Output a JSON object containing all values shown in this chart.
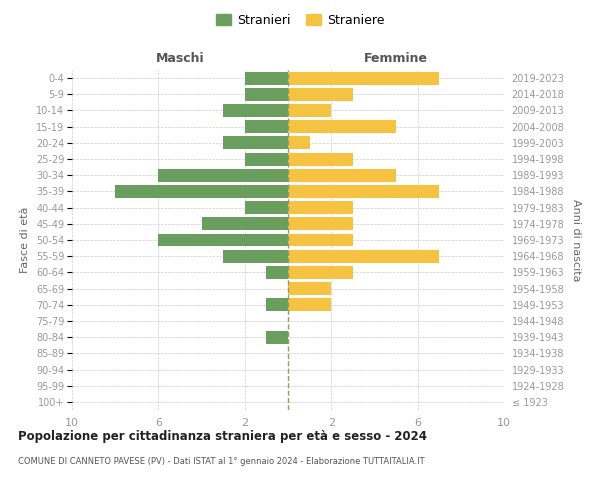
{
  "age_groups": [
    "100+",
    "95-99",
    "90-94",
    "85-89",
    "80-84",
    "75-79",
    "70-74",
    "65-69",
    "60-64",
    "55-59",
    "50-54",
    "45-49",
    "40-44",
    "35-39",
    "30-34",
    "25-29",
    "20-24",
    "15-19",
    "10-14",
    "5-9",
    "0-4"
  ],
  "birth_years": [
    "≤ 1923",
    "1924-1928",
    "1929-1933",
    "1934-1938",
    "1939-1943",
    "1944-1948",
    "1949-1953",
    "1954-1958",
    "1959-1963",
    "1964-1968",
    "1969-1973",
    "1974-1978",
    "1979-1983",
    "1984-1988",
    "1989-1993",
    "1994-1998",
    "1999-2003",
    "2004-2008",
    "2009-2013",
    "2014-2018",
    "2019-2023"
  ],
  "maschi": [
    0,
    0,
    0,
    0,
    1,
    0,
    1,
    0,
    1,
    3,
    6,
    4,
    2,
    8,
    6,
    2,
    3,
    2,
    3,
    2,
    2
  ],
  "femmine": [
    0,
    0,
    0,
    0,
    0,
    0,
    2,
    2,
    3,
    7,
    3,
    3,
    3,
    7,
    5,
    3,
    1,
    5,
    2,
    3,
    7
  ],
  "color_maschi": "#6a9e5f",
  "color_femmine": "#f5c242",
  "title": "Popolazione per cittadinanza straniera per età e sesso - 2024",
  "subtitle": "COMUNE DI CANNETO PAVESE (PV) - Dati ISTAT al 1° gennaio 2024 - Elaborazione TUTTAITALIA.IT",
  "xlabel_left": "Maschi",
  "xlabel_right": "Femmine",
  "ylabel_left": "Fasce di età",
  "ylabel_right": "Anni di nascita",
  "legend_maschi": "Stranieri",
  "legend_femmine": "Straniere",
  "xlim": 10,
  "background_color": "#ffffff",
  "grid_color": "#cccccc",
  "bar_height": 0.8
}
